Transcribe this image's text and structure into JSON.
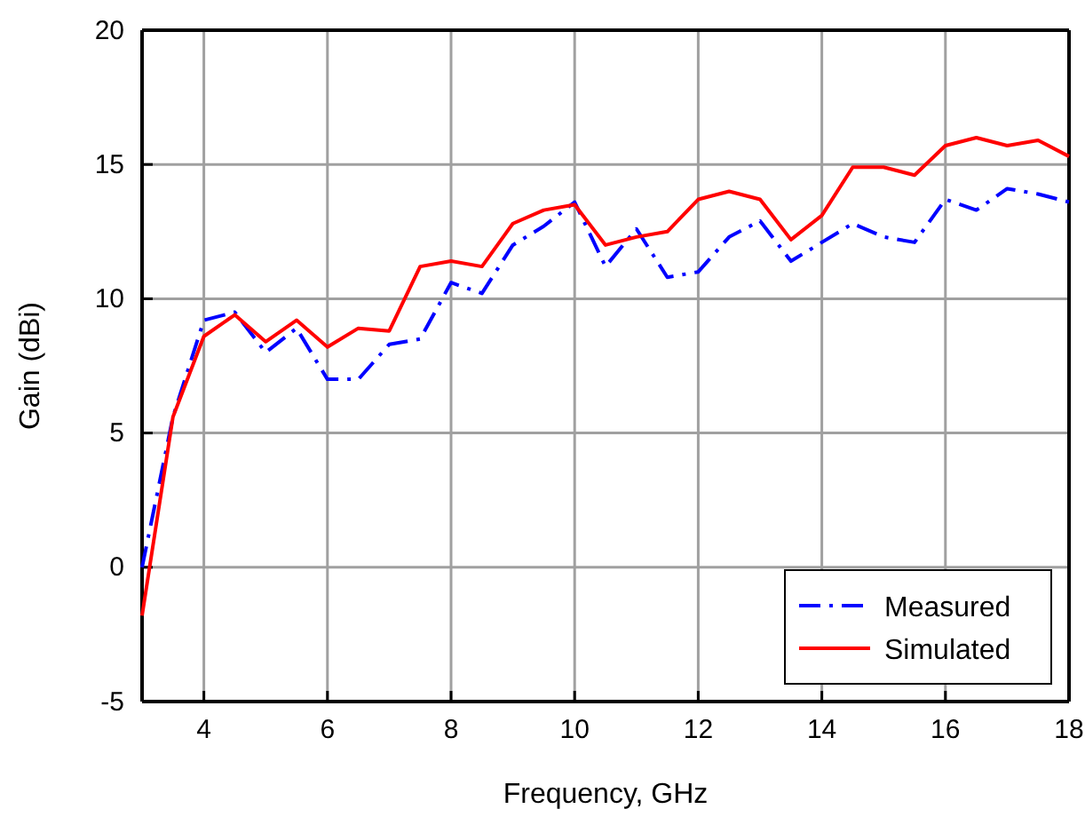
{
  "chart_data": {
    "type": "line",
    "xlabel": "Frequency,  GHz",
    "ylabel": "Gain (dBi)",
    "x": [
      3,
      3.5,
      4,
      4.5,
      5,
      5.5,
      6,
      6.5,
      7,
      7.5,
      8,
      8.5,
      9,
      9.5,
      10,
      10.5,
      11,
      11.5,
      12,
      12.5,
      13,
      13.5,
      14,
      14.5,
      15,
      15.5,
      16,
      16.5,
      17,
      17.5,
      18
    ],
    "series": [
      {
        "name": "Measured",
        "color": "#0000ff",
        "line_style": "dashed",
        "values": [
          0.0,
          5.6,
          9.2,
          9.5,
          8.0,
          8.9,
          7.0,
          7.0,
          8.3,
          8.5,
          10.6,
          10.2,
          12.0,
          12.7,
          13.6,
          11.2,
          12.6,
          10.8,
          11.0,
          12.3,
          12.9,
          11.4,
          12.1,
          12.8,
          12.3,
          12.1,
          13.7,
          13.3,
          14.1,
          13.9,
          13.6
        ]
      },
      {
        "name": "Simulated",
        "color": "#ff0000",
        "line_style": "solid",
        "values": [
          -1.8,
          5.6,
          8.6,
          9.4,
          8.4,
          9.2,
          8.2,
          8.9,
          8.8,
          11.2,
          11.4,
          11.2,
          12.8,
          13.3,
          13.5,
          12.0,
          12.3,
          12.5,
          13.7,
          14.0,
          13.7,
          12.2,
          13.1,
          14.9,
          14.9,
          14.6,
          15.7,
          16.0,
          15.7,
          15.9,
          15.3
        ]
      }
    ],
    "xlim": [
      3,
      18
    ],
    "xticks": [
      4,
      6,
      8,
      10,
      12,
      14,
      16,
      18
    ],
    "ylim": [
      -5,
      20
    ],
    "yticks": [
      -5,
      0,
      5,
      10,
      15,
      20
    ],
    "grid": true,
    "legend": "bottom right"
  }
}
